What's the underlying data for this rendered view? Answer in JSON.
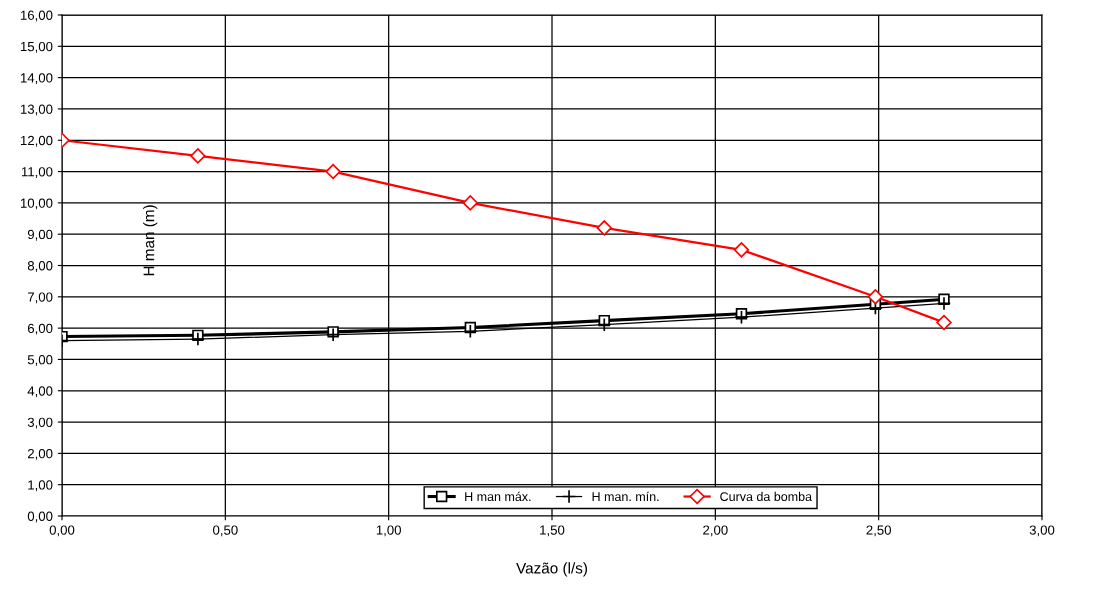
{
  "chart_data": {
    "type": "line",
    "xlabel": "Vazão (l/s)",
    "ylabel": "H man (m)",
    "x": [
      0,
      0.416,
      0.83,
      1.25,
      1.66,
      2.08,
      2.49,
      2.7
    ],
    "series": [
      {
        "name": "H man máx.",
        "color": "#000000",
        "marker": "square",
        "values": [
          5.73,
          5.77,
          5.88,
          6.02,
          6.24,
          6.46,
          6.76,
          6.92
        ]
      },
      {
        "name": "H man. mín.",
        "color": "#000000",
        "marker": "cross",
        "values": [
          5.6,
          5.65,
          5.79,
          5.9,
          6.11,
          6.35,
          6.64,
          6.79
        ]
      },
      {
        "name": "Curva da bomba",
        "color": "#ff0000",
        "marker": "diamond",
        "values": [
          12,
          11.5,
          11,
          10,
          9.2,
          8.5,
          7.0,
          6.18
        ]
      }
    ],
    "xlim": [
      0,
      3
    ],
    "ylim": [
      0,
      16
    ],
    "xticks": [
      {
        "value": 0,
        "label": "0,00"
      },
      {
        "value": 0.5,
        "label": "0,50"
      },
      {
        "value": 1,
        "label": "1,00"
      },
      {
        "value": 1.5,
        "label": "1,50"
      },
      {
        "value": 2,
        "label": "2,00"
      },
      {
        "value": 2.5,
        "label": "2,50"
      },
      {
        "value": 3,
        "label": "3,00"
      }
    ],
    "yticks": [
      {
        "value": 0,
        "label": "0,00"
      },
      {
        "value": 1,
        "label": "1,00"
      },
      {
        "value": 2,
        "label": "2,00"
      },
      {
        "value": 3,
        "label": "3,00"
      },
      {
        "value": 4,
        "label": "4,00"
      },
      {
        "value": 5,
        "label": "5,00"
      },
      {
        "value": 6,
        "label": "6,00"
      },
      {
        "value": 7,
        "label": "7,00"
      },
      {
        "value": 8,
        "label": "8,00"
      },
      {
        "value": 9,
        "label": "9,00"
      },
      {
        "value": 10,
        "label": "10,00"
      },
      {
        "value": 11,
        "label": "11,00"
      },
      {
        "value": 12,
        "label": "12,00"
      },
      {
        "value": 13,
        "label": "13,00"
      },
      {
        "value": 14,
        "label": "14,00"
      },
      {
        "value": 15,
        "label": "15,00"
      },
      {
        "value": 16,
        "label": "16,00"
      }
    ],
    "grid": true,
    "legend": "bottom"
  }
}
